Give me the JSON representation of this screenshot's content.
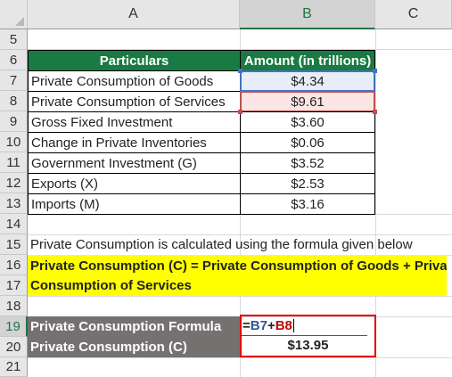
{
  "columns": [
    "A",
    "B",
    "C"
  ],
  "rows": [
    "5",
    "6",
    "7",
    "8",
    "9",
    "10",
    "11",
    "12",
    "13",
    "14",
    "15",
    "16",
    "17",
    "18",
    "19",
    "20",
    "21"
  ],
  "table": {
    "header": {
      "particulars": "Particulars",
      "amount": "Amount (in trillions)"
    },
    "items": [
      {
        "label": "Private Consumption of Goods",
        "value": "$4.34"
      },
      {
        "label": "Private Consumption of Services",
        "value": "$9.61"
      },
      {
        "label": "Gross Fixed Investment",
        "value": "$3.60"
      },
      {
        "label": "Change in Private Inventories",
        "value": "$0.06"
      },
      {
        "label": "Government Investment (G)",
        "value": "$3.52"
      },
      {
        "label": "Exports (X)",
        "value": "$2.53"
      },
      {
        "label": "Imports (M)",
        "value": "$3.16"
      }
    ]
  },
  "note": "Private Consumption is calculated using the formula given below",
  "formula_text": {
    "line1": "Private Consumption (C) = Private Consumption of Goods + Private",
    "line2": "Consumption of Services"
  },
  "calc": {
    "formula_label": "Private Consumption Formula",
    "formula_parts": {
      "eq": "=",
      "ref1": "B7",
      "plus": "+",
      "ref2": "B8"
    },
    "result_label": "Private Consumption (C)",
    "result_value": "$13.95"
  },
  "colors": {
    "header_green": "#1a7a43",
    "highlight_blue": "#4472c4",
    "highlight_red": "#c0504d",
    "yellow": "#ffff00",
    "dark_gray": "#767171",
    "formula_border": "#e00000"
  }
}
